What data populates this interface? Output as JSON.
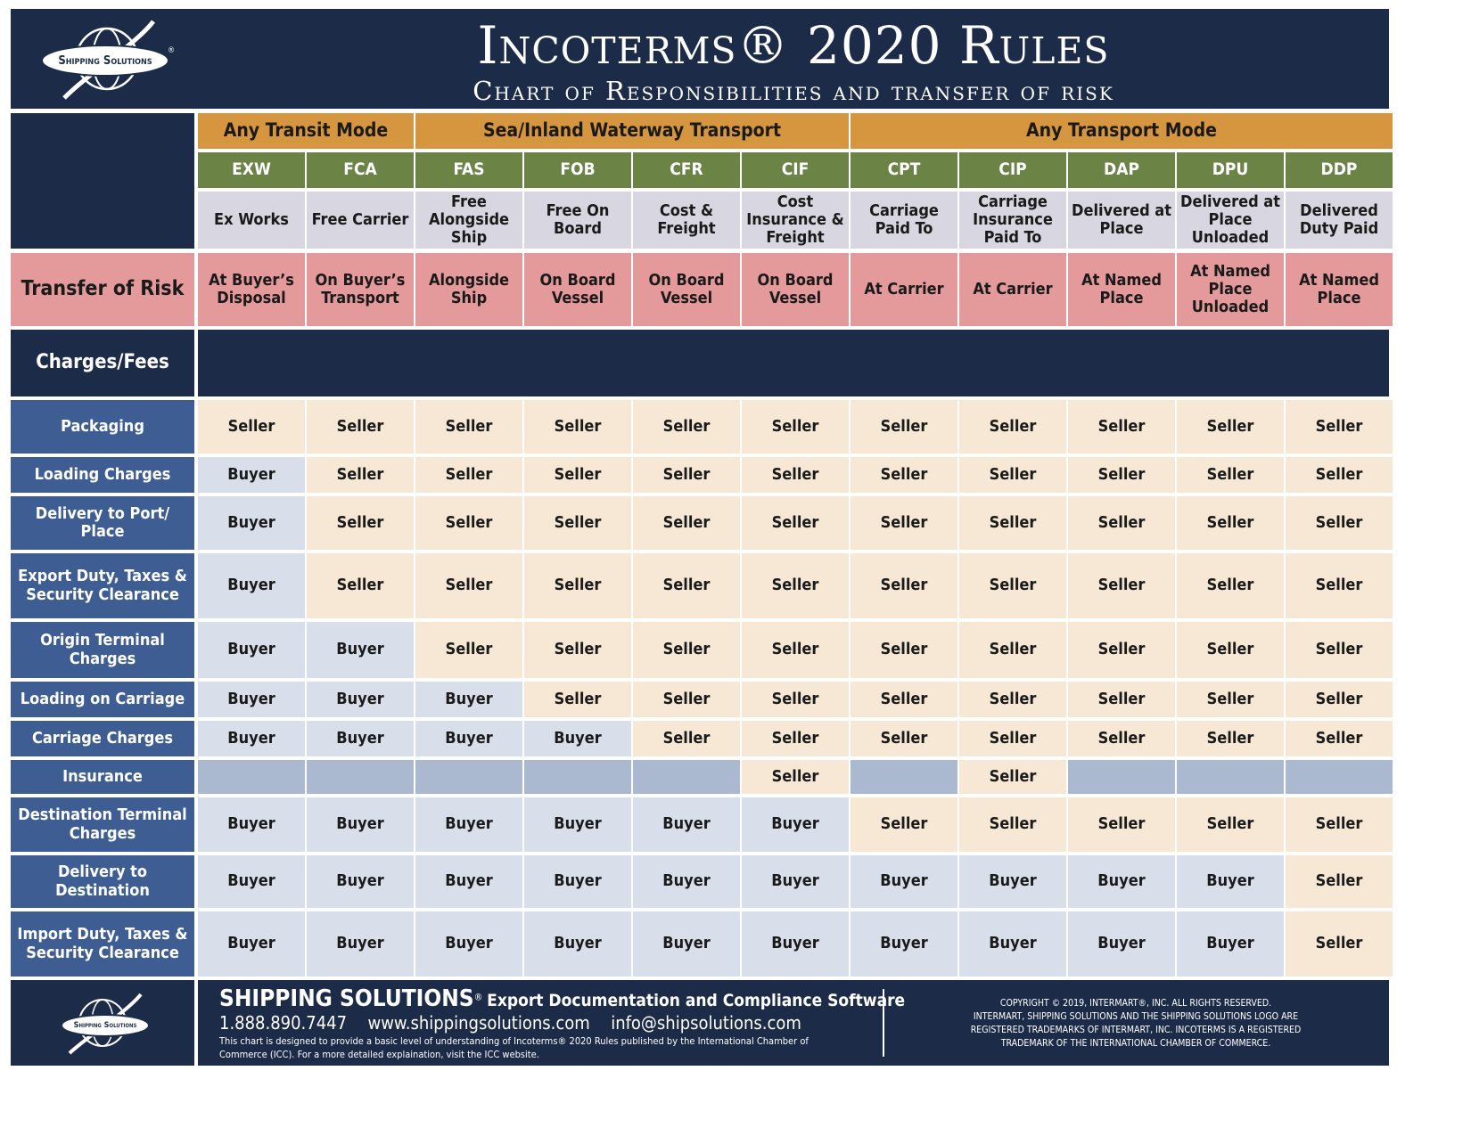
{
  "header": {
    "title": "Incoterms® 2020 Rules",
    "subtitle": "Chart of Responsibilities and transfer of risk",
    "logo_text": "Shipping Solutions",
    "logo_mark": "®"
  },
  "groups": [
    {
      "label": "Any Transit Mode"
    },
    {
      "label": "Sea/Inland Waterway Transport"
    },
    {
      "label": "Any Transport Mode"
    }
  ],
  "terms": [
    {
      "code": "EXW",
      "name": "Ex Works",
      "risk": "At Buyer’s Disposal"
    },
    {
      "code": "FCA",
      "name": "Free Carrier",
      "risk": "On Buyer’s Transport"
    },
    {
      "code": "FAS",
      "name": "Free Alongside Ship",
      "risk": "Alongside Ship"
    },
    {
      "code": "FOB",
      "name": "Free On Board",
      "risk": "On Board Vessel"
    },
    {
      "code": "CFR",
      "name": "Cost & Freight",
      "risk": "On Board Vessel"
    },
    {
      "code": "CIF",
      "name": "Cost Insurance & Freight",
      "risk": "On Board Vessel"
    },
    {
      "code": "CPT",
      "name": "Carriage Paid To",
      "risk": "At Carrier"
    },
    {
      "code": "CIP",
      "name": "Carriage Insurance Paid To",
      "risk": "At Carrier"
    },
    {
      "code": "DAP",
      "name": "Delivered at Place",
      "risk": "At Named Place"
    },
    {
      "code": "DPU",
      "name": "Delivered at Place Unloaded",
      "risk": "At Named Place Unloaded"
    },
    {
      "code": "DDP",
      "name": "Delivered Duty Paid",
      "risk": "At Named Place"
    }
  ],
  "labels": {
    "risk": "Transfer of Risk",
    "charges": "Charges/Fees"
  },
  "charges": [
    {
      "label": "Packaging",
      "values": [
        "Seller",
        "Seller",
        "Seller",
        "Seller",
        "Seller",
        "Seller",
        "Seller",
        "Seller",
        "Seller",
        "Seller",
        "Seller"
      ]
    },
    {
      "label": "Loading Charges",
      "values": [
        "Buyer",
        "Seller",
        "Seller",
        "Seller",
        "Seller",
        "Seller",
        "Seller",
        "Seller",
        "Seller",
        "Seller",
        "Seller"
      ]
    },
    {
      "label": "Delivery to Port/ Place",
      "values": [
        "Buyer",
        "Seller",
        "Seller",
        "Seller",
        "Seller",
        "Seller",
        "Seller",
        "Seller",
        "Seller",
        "Seller",
        "Seller"
      ]
    },
    {
      "label": "Export Duty, Taxes & Security Clearance",
      "values": [
        "Buyer",
        "Seller",
        "Seller",
        "Seller",
        "Seller",
        "Seller",
        "Seller",
        "Seller",
        "Seller",
        "Seller",
        "Seller"
      ]
    },
    {
      "label": "Origin Terminal Charges",
      "values": [
        "Buyer",
        "Buyer",
        "Seller",
        "Seller",
        "Seller",
        "Seller",
        "Seller",
        "Seller",
        "Seller",
        "Seller",
        "Seller"
      ]
    },
    {
      "label": "Loading on Carriage",
      "values": [
        "Buyer",
        "Buyer",
        "Buyer",
        "Seller",
        "Seller",
        "Seller",
        "Seller",
        "Seller",
        "Seller",
        "Seller",
        "Seller"
      ]
    },
    {
      "label": "Carriage Charges",
      "values": [
        "Buyer",
        "Buyer",
        "Buyer",
        "Buyer",
        "Seller",
        "Seller",
        "Seller",
        "Seller",
        "Seller",
        "Seller",
        "Seller"
      ]
    },
    {
      "label": "Insurance",
      "values": [
        "",
        "",
        "",
        "",
        "",
        "Seller",
        "",
        "Seller",
        "",
        "",
        ""
      ]
    },
    {
      "label": "Destination Terminal Charges",
      "values": [
        "Buyer",
        "Buyer",
        "Buyer",
        "Buyer",
        "Buyer",
        "Buyer",
        "Seller",
        "Seller",
        "Seller",
        "Seller",
        "Seller"
      ]
    },
    {
      "label": "Delivery to Destination",
      "values": [
        "Buyer",
        "Buyer",
        "Buyer",
        "Buyer",
        "Buyer",
        "Buyer",
        "Buyer",
        "Buyer",
        "Buyer",
        "Buyer",
        "Seller"
      ]
    },
    {
      "label": "Import Duty, Taxes & Security Clearance",
      "values": [
        "Buyer",
        "Buyer",
        "Buyer",
        "Buyer",
        "Buyer",
        "Buyer",
        "Buyer",
        "Buyer",
        "Buyer",
        "Buyer",
        "Seller"
      ]
    }
  ],
  "footer": {
    "brand": "SHIPPING SOLUTIONS",
    "brand_mark": "®",
    "tagline": "Export Documentation and Compliance Software",
    "phone": "1.888.890.7447",
    "website": "www.shippingsolutions.com",
    "email": "info@shipsolutions.com",
    "note_line1": "This chart is designed to provide a basic level of understanding of Incoterms® 2020 Rules published by the International Chamber of",
    "note_line2": "Commerce (ICC). For a more detailed explaination, visit the ICC website.",
    "copyright_lines": [
      "COPYRIGHT © 2019, INTERMART®, INC. ALL RIGHTS RESERVED.",
      "INTERMART, SHIPPING SOLUTIONS AND THE SHIPPING SOLUTIONS LOGO ARE",
      "REGISTERED TRADEMARKS OF INTERMART, INC. INCOTERMS IS A REGISTERED",
      "TRADEMARK OF THE INTERNATIONAL CHAMBER OF COMMERCE."
    ]
  }
}
